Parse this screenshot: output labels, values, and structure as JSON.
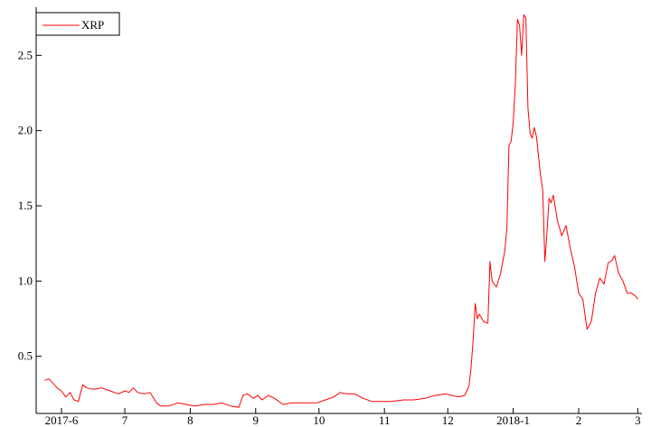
{
  "chart_data": {
    "type": "line",
    "title": "",
    "xlabel": "",
    "ylabel": "",
    "grid": false,
    "legend_placement": "top-left",
    "x_range": [
      "2017-05-20",
      "2018-03-03"
    ],
    "ylim": [
      0.12,
      2.82
    ],
    "y_ticks": [
      0.5,
      1.0,
      1.5,
      2.0,
      2.5
    ],
    "y_tick_labels": [
      "0.5",
      "1.0",
      "1.5",
      "2.0",
      "2.5"
    ],
    "x_ticks": [
      {
        "date": "2017-06-01",
        "label": "2017-6"
      },
      {
        "date": "2017-07-01",
        "label": "7"
      },
      {
        "date": "2017-08-01",
        "label": "8"
      },
      {
        "date": "2017-09-01",
        "label": "9"
      },
      {
        "date": "2017-10-01",
        "label": "10"
      },
      {
        "date": "2017-11-01",
        "label": "11"
      },
      {
        "date": "2017-12-01",
        "label": "12"
      },
      {
        "date": "2018-01-01",
        "label": "2018-1"
      },
      {
        "date": "2018-02-01",
        "label": "2"
      },
      {
        "date": "2018-03-01",
        "label": "3"
      }
    ],
    "series": [
      {
        "name": "XRP",
        "color": "#ff0000",
        "points": [
          [
            "2017-05-24",
            0.34
          ],
          [
            "2017-05-26",
            0.35
          ],
          [
            "2017-05-28",
            0.32
          ],
          [
            "2017-05-30",
            0.29
          ],
          [
            "2017-06-01",
            0.27
          ],
          [
            "2017-06-03",
            0.23
          ],
          [
            "2017-06-05",
            0.26
          ],
          [
            "2017-06-07",
            0.21
          ],
          [
            "2017-06-09",
            0.2
          ],
          [
            "2017-06-11",
            0.31
          ],
          [
            "2017-06-13",
            0.29
          ],
          [
            "2017-06-16",
            0.28
          ],
          [
            "2017-06-20",
            0.29
          ],
          [
            "2017-06-24",
            0.27
          ],
          [
            "2017-06-28",
            0.25
          ],
          [
            "2017-07-01",
            0.27
          ],
          [
            "2017-07-03",
            0.26
          ],
          [
            "2017-07-05",
            0.29
          ],
          [
            "2017-07-07",
            0.26
          ],
          [
            "2017-07-10",
            0.25
          ],
          [
            "2017-07-13",
            0.26
          ],
          [
            "2017-07-16",
            0.19
          ],
          [
            "2017-07-18",
            0.17
          ],
          [
            "2017-07-22",
            0.17
          ],
          [
            "2017-07-26",
            0.19
          ],
          [
            "2017-07-30",
            0.18
          ],
          [
            "2017-08-03",
            0.17
          ],
          [
            "2017-08-08",
            0.18
          ],
          [
            "2017-08-12",
            0.18
          ],
          [
            "2017-08-16",
            0.19
          ],
          [
            "2017-08-20",
            0.17
          ],
          [
            "2017-08-24",
            0.16
          ],
          [
            "2017-08-26",
            0.24
          ],
          [
            "2017-08-28",
            0.25
          ],
          [
            "2017-08-31",
            0.22
          ],
          [
            "2017-09-02",
            0.24
          ],
          [
            "2017-09-04",
            0.21
          ],
          [
            "2017-09-07",
            0.24
          ],
          [
            "2017-09-10",
            0.22
          ],
          [
            "2017-09-14",
            0.18
          ],
          [
            "2017-09-18",
            0.19
          ],
          [
            "2017-09-22",
            0.19
          ],
          [
            "2017-09-26",
            0.19
          ],
          [
            "2017-09-30",
            0.19
          ],
          [
            "2017-10-04",
            0.21
          ],
          [
            "2017-10-08",
            0.23
          ],
          [
            "2017-10-11",
            0.26
          ],
          [
            "2017-10-14",
            0.25
          ],
          [
            "2017-10-18",
            0.25
          ],
          [
            "2017-10-22",
            0.22
          ],
          [
            "2017-10-26",
            0.2
          ],
          [
            "2017-10-30",
            0.2
          ],
          [
            "2017-11-04",
            0.2
          ],
          [
            "2017-11-10",
            0.21
          ],
          [
            "2017-11-15",
            0.21
          ],
          [
            "2017-11-20",
            0.22
          ],
          [
            "2017-11-25",
            0.24
          ],
          [
            "2017-11-30",
            0.25
          ],
          [
            "2017-12-03",
            0.24
          ],
          [
            "2017-12-06",
            0.23
          ],
          [
            "2017-12-09",
            0.24
          ],
          [
            "2017-12-11",
            0.3
          ],
          [
            "2017-12-12",
            0.42
          ],
          [
            "2017-12-13",
            0.6
          ],
          [
            "2017-12-14",
            0.85
          ],
          [
            "2017-12-15",
            0.75
          ],
          [
            "2017-12-16",
            0.78
          ],
          [
            "2017-12-18",
            0.73
          ],
          [
            "2017-12-20",
            0.72
          ],
          [
            "2017-12-21",
            1.13
          ],
          [
            "2017-12-22",
            1.0
          ],
          [
            "2017-12-24",
            0.96
          ],
          [
            "2017-12-26",
            1.05
          ],
          [
            "2017-12-28",
            1.2
          ],
          [
            "2017-12-29",
            1.35
          ],
          [
            "2017-12-30",
            1.9
          ],
          [
            "2017-12-31",
            1.93
          ],
          [
            "2018-01-01",
            2.05
          ],
          [
            "2018-01-02",
            2.3
          ],
          [
            "2018-01-03",
            2.74
          ],
          [
            "2018-01-04",
            2.7
          ],
          [
            "2018-01-05",
            2.5
          ],
          [
            "2018-01-06",
            2.77
          ],
          [
            "2018-01-07",
            2.75
          ],
          [
            "2018-01-08",
            2.15
          ],
          [
            "2018-01-09",
            1.98
          ],
          [
            "2018-01-10",
            1.95
          ],
          [
            "2018-01-11",
            2.02
          ],
          [
            "2018-01-12",
            1.96
          ],
          [
            "2018-01-14",
            1.7
          ],
          [
            "2018-01-15",
            1.6
          ],
          [
            "2018-01-16",
            1.13
          ],
          [
            "2018-01-17",
            1.32
          ],
          [
            "2018-01-18",
            1.55
          ],
          [
            "2018-01-19",
            1.52
          ],
          [
            "2018-01-20",
            1.57
          ],
          [
            "2018-01-22",
            1.4
          ],
          [
            "2018-01-24",
            1.3
          ],
          [
            "2018-01-26",
            1.37
          ],
          [
            "2018-01-28",
            1.22
          ],
          [
            "2018-01-30",
            1.1
          ],
          [
            "2018-02-01",
            0.92
          ],
          [
            "2018-02-03",
            0.88
          ],
          [
            "2018-02-05",
            0.68
          ],
          [
            "2018-02-07",
            0.73
          ],
          [
            "2018-02-09",
            0.92
          ],
          [
            "2018-02-11",
            1.02
          ],
          [
            "2018-02-13",
            0.98
          ],
          [
            "2018-02-15",
            1.12
          ],
          [
            "2018-02-17",
            1.14
          ],
          [
            "2018-02-18",
            1.17
          ],
          [
            "2018-02-20",
            1.05
          ],
          [
            "2018-02-22",
            1.0
          ],
          [
            "2018-02-24",
            0.92
          ],
          [
            "2018-02-26",
            0.92
          ],
          [
            "2018-02-28",
            0.9
          ],
          [
            "2018-03-01",
            0.88
          ]
        ]
      }
    ]
  }
}
